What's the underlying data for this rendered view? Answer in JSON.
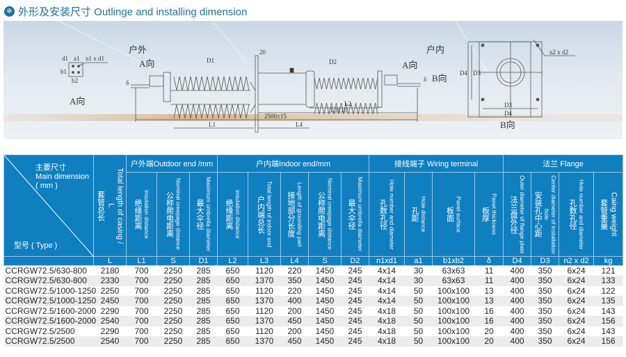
{
  "title": {
    "icon": "bushing-logo-icon",
    "text": "外形及安装尺寸 Outlinge and installing dimension"
  },
  "drawing": {
    "outdoor": "户外",
    "indoor": "户内",
    "a_view": "A向",
    "a_view_top": "A向",
    "a_view_right": "A向",
    "b_view": "B向",
    "b_view_arrow": "B向",
    "n1d1": "n1 x d1",
    "a1": "a1",
    "b1": "b1",
    "b2": "b2",
    "d1_small": "d1",
    "delta": "δ",
    "delta2": "δ",
    "D1": "D1",
    "D2": "D2",
    "flange_t": "20",
    "L1": "L1",
    "L4": "L4",
    "L2": "L2",
    "L3": "L3±10",
    "total": "2500±15",
    "D4": "D4",
    "D3": "D3",
    "D3b": "D3",
    "D4b": "D4",
    "n2d2": "n2 x d2"
  },
  "table": {
    "corner": {
      "main_zh": "主要尺寸",
      "main_en": "Main dimension",
      "unit": "( mm )",
      "type": "型号 ( Type )"
    },
    "groups": {
      "outdoor": "户外端Outdoor end /mm",
      "indoor": "户内端Indoor end/mm",
      "wiring": "接线端子 Wiring terminal",
      "flange": "法兰 Flange"
    },
    "columns": [
      {
        "en": "Total length of casing / L",
        "zh": "套管总长",
        "sym": "L"
      },
      {
        "en": "insulation distance",
        "zh": "绝缘距离",
        "sym": "L1"
      },
      {
        "en": "Nominal creepage distance",
        "zh": "公称爬电距离",
        "sym": "S"
      },
      {
        "en": "Maximum umbrella diameter",
        "zh": "最大伞径",
        "sym": "D1"
      },
      {
        "en": "insulation distance",
        "zh": "绝缘距离",
        "sym": "L2"
      },
      {
        "en": "Total length of indoor end",
        "zh": "户内端总长",
        "sym": "L3"
      },
      {
        "en": "Length of grounding part",
        "zh": "接地部分长度",
        "sym": "L4"
      },
      {
        "en": "Nominal creepage distance",
        "zh": "公称爬电距离",
        "sym": "S"
      },
      {
        "en": "Maximum umbrella diameter",
        "zh": "最大伞径",
        "sym": "D2"
      },
      {
        "en": "Hole number and diameter",
        "zh": "孔数孔径",
        "sym": "n1xd1"
      },
      {
        "en": "Hole distance",
        "zh": "孔距",
        "sym": "a1"
      },
      {
        "en": "Panel surface",
        "zh": "板面",
        "sym": "b1xb2"
      },
      {
        "en": "Panel thickness",
        "zh": "板厚",
        "sym": "δ"
      },
      {
        "en": "Outer diameter of flange plate",
        "zh": "法兰盘外径",
        "sym": "D4"
      },
      {
        "en": "Center diameter of installation hole",
        "zh": "安装孔中心距",
        "sym": "D3"
      },
      {
        "en": "Hole number and diameter",
        "zh": "孔数孔径",
        "sym": "n2 x d2"
      },
      {
        "en": "Caing weight",
        "zh": "套管重量",
        "sym": "kg"
      }
    ],
    "rows": [
      [
        "CCRGW72.5/630-800",
        "2180",
        "700",
        "2250",
        "285",
        "650",
        "1120",
        "220",
        "1450",
        "245",
        "4x14",
        "30",
        "63x63",
        "11",
        "400",
        "350",
        "6x24",
        "121"
      ],
      [
        "CCRGW72.5/630-800",
        "2330",
        "700",
        "2250",
        "285",
        "650",
        "1370",
        "350",
        "1450",
        "245",
        "4x14",
        "30",
        "63x63",
        "11",
        "400",
        "350",
        "6x24",
        "133"
      ],
      [
        "CCRGW72.5/1000-1250",
        "2250",
        "700",
        "2250",
        "285",
        "650",
        "1120",
        "220",
        "1450",
        "245",
        "4x14",
        "50",
        "100x100",
        "13",
        "400",
        "350",
        "6x24",
        "122"
      ],
      [
        "CCRGW72.5/1000-1250",
        "2450",
        "700",
        "2250",
        "285",
        "650",
        "1370",
        "400",
        "1450",
        "245",
        "4x14",
        "50",
        "100x100",
        "13",
        "400",
        "350",
        "6x24",
        "135"
      ],
      [
        "CCRGW72.5/1600-2000",
        "2290",
        "700",
        "2250",
        "285",
        "650",
        "1120",
        "200",
        "1450",
        "245",
        "4x18",
        "50",
        "100x100",
        "16",
        "400",
        "350",
        "6x24",
        "143"
      ],
      [
        "CCRGW72.5/1600-2000",
        "2540",
        "700",
        "2250",
        "285",
        "650",
        "1370",
        "450",
        "1450",
        "245",
        "4x18",
        "50",
        "100x100",
        "16",
        "400",
        "350",
        "6x24",
        "156"
      ],
      [
        "CCRGW72.5/2500",
        "2290",
        "700",
        "2250",
        "285",
        "650",
        "1120",
        "200",
        "1450",
        "245",
        "4x18",
        "50",
        "100x100",
        "20",
        "400",
        "350",
        "6x24",
        "143"
      ],
      [
        "CCRGW72.5/2500",
        "2540",
        "700",
        "2250",
        "285",
        "650",
        "1370",
        "450",
        "1450",
        "245",
        "4x18",
        "50",
        "100x100",
        "20",
        "400",
        "350",
        "6x24",
        "156"
      ]
    ]
  }
}
